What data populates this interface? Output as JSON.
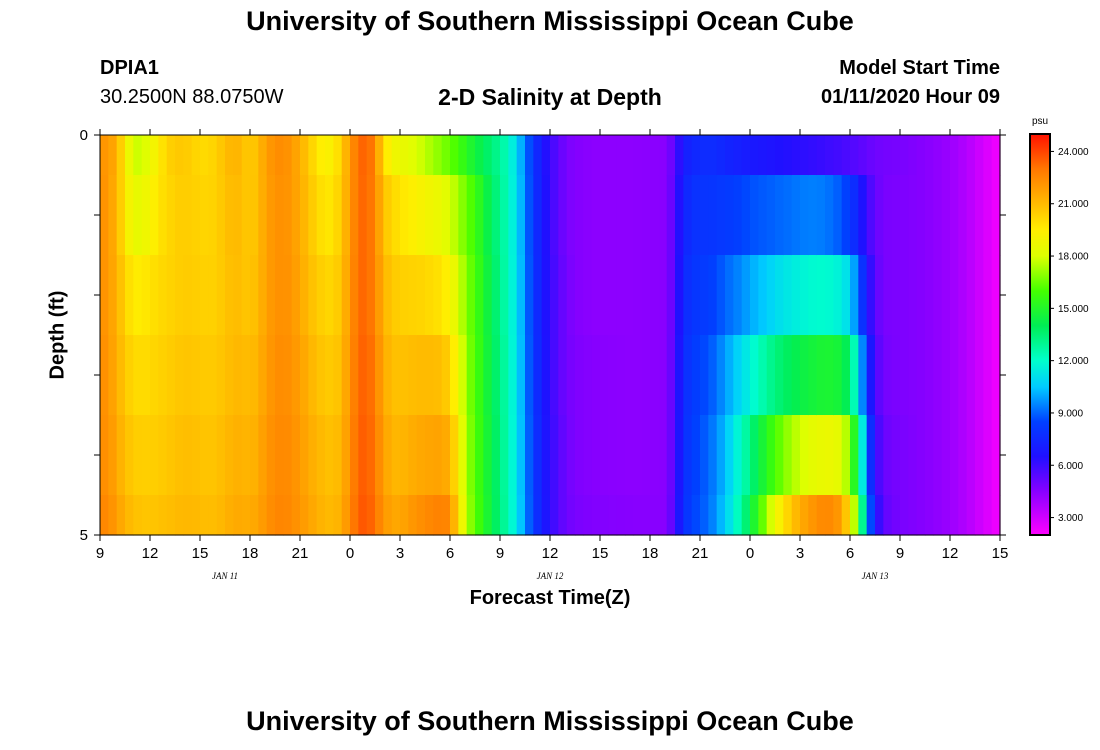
{
  "header": {
    "title": "University of Southern Mississippi Ocean Cube",
    "station_id": "DPIA1",
    "coordinates": "30.2500N 88.0750W",
    "subtitle": "2-D Salinity at Depth",
    "model_start_label": "Model Start Time",
    "model_start_value": "01/11/2020 Hour 09"
  },
  "footer": {
    "title": "University of Southern Mississippi Ocean Cube"
  },
  "chart_data": {
    "type": "heatmap",
    "title": "2-D Salinity at Depth",
    "xlabel": "Forecast Time(Z)",
    "ylabel": "Depth (ft)",
    "x_range_hours": [
      0,
      54
    ],
    "x_ticks": [
      {
        "hour": 0,
        "label": "9"
      },
      {
        "hour": 3,
        "label": "12"
      },
      {
        "hour": 6,
        "label": "15"
      },
      {
        "hour": 9,
        "label": "18"
      },
      {
        "hour": 12,
        "label": "21"
      },
      {
        "hour": 15,
        "label": "0"
      },
      {
        "hour": 18,
        "label": "3"
      },
      {
        "hour": 21,
        "label": "6"
      },
      {
        "hour": 24,
        "label": "9"
      },
      {
        "hour": 27,
        "label": "12"
      },
      {
        "hour": 30,
        "label": "15"
      },
      {
        "hour": 33,
        "label": "18"
      },
      {
        "hour": 36,
        "label": "21"
      },
      {
        "hour": 39,
        "label": "0"
      },
      {
        "hour": 42,
        "label": "3"
      },
      {
        "hour": 45,
        "label": "6"
      },
      {
        "hour": 48,
        "label": "9"
      },
      {
        "hour": 51,
        "label": "12"
      },
      {
        "hour": 54,
        "label": "15"
      }
    ],
    "date_labels": [
      {
        "hour": 7.5,
        "label": "JAN 11"
      },
      {
        "hour": 27,
        "label": "JAN 12"
      },
      {
        "hour": 46.5,
        "label": "JAN 13"
      }
    ],
    "y_range": [
      0,
      5
    ],
    "y_ticks": [
      {
        "value": 0,
        "label": "0"
      },
      {
        "value": 1,
        "label": ""
      },
      {
        "value": 2,
        "label": ""
      },
      {
        "value": 3,
        "label": ""
      },
      {
        "value": 4,
        "label": ""
      },
      {
        "value": 5,
        "label": "5"
      }
    ],
    "depth_levels": [
      "0-0.5",
      "0.5-1.5",
      "1.5-2.5",
      "2.5-3.5",
      "3.5-4.5",
      "4.5-5"
    ],
    "time_step_hours": 0.5,
    "value_unit": "psu",
    "value_range": [
      2.0,
      25.0
    ],
    "colorbar": {
      "unit": "psu",
      "ticks": [
        24.0,
        21.0,
        18.0,
        15.0,
        12.0,
        9.0,
        6.0,
        3.0
      ],
      "tick_labels": [
        "24.000",
        "21.000",
        "18.000",
        "15.000",
        "12.000",
        "9.000",
        "6.000",
        "3.000"
      ],
      "stops": [
        {
          "v": 2.0,
          "color": "#ff00ff"
        },
        {
          "v": 4.5,
          "color": "#8800ff"
        },
        {
          "v": 6.5,
          "color": "#2010ff"
        },
        {
          "v": 8.5,
          "color": "#0040ff"
        },
        {
          "v": 10.5,
          "color": "#00ccff"
        },
        {
          "v": 12.0,
          "color": "#00ffcc"
        },
        {
          "v": 14.0,
          "color": "#00ee55"
        },
        {
          "v": 16.0,
          "color": "#44ff00"
        },
        {
          "v": 18.0,
          "color": "#ddff00"
        },
        {
          "v": 19.5,
          "color": "#ffee00"
        },
        {
          "v": 21.0,
          "color": "#ffbb00"
        },
        {
          "v": 23.0,
          "color": "#ff7700"
        },
        {
          "v": 25.0,
          "color": "#ff1100"
        }
      ]
    },
    "salinity_profile": [
      {
        "hour": 0.0,
        "levels": [
          22.2,
          22.3,
          22.3,
          22.4,
          22.4,
          22.6
        ]
      },
      {
        "hour": 0.5,
        "levels": [
          22.0,
          22.0,
          22.0,
          22.1,
          22.2,
          22.4
        ]
      },
      {
        "hour": 1.0,
        "levels": [
          21.4,
          21.2,
          21.3,
          21.4,
          21.6,
          21.9
        ]
      },
      {
        "hour": 1.5,
        "levels": [
          19.5,
          19.7,
          20.3,
          20.6,
          20.9,
          21.2
        ]
      },
      {
        "hour": 2.0,
        "levels": [
          17.8,
          18.4,
          19.5,
          20.1,
          20.5,
          20.9
        ]
      },
      {
        "hour": 2.5,
        "levels": [
          17.8,
          18.6,
          19.6,
          20.0,
          20.4,
          20.7
        ]
      },
      {
        "hour": 3.0,
        "levels": [
          18.5,
          19.0,
          19.8,
          20.1,
          20.4,
          20.7
        ]
      },
      {
        "hour": 3.5,
        "levels": [
          19.5,
          19.8,
          20.1,
          20.3,
          20.5,
          20.8
        ]
      },
      {
        "hour": 4.0,
        "levels": [
          20.2,
          20.1,
          20.2,
          20.4,
          20.6,
          20.9
        ]
      },
      {
        "hour": 4.5,
        "levels": [
          20.6,
          20.4,
          20.4,
          20.6,
          20.8,
          21.0
        ]
      },
      {
        "hour": 5.0,
        "levels": [
          20.6,
          20.5,
          20.5,
          20.7,
          20.9,
          21.1
        ]
      },
      {
        "hour": 5.5,
        "levels": [
          20.4,
          20.4,
          20.5,
          20.7,
          20.9,
          21.1
        ]
      },
      {
        "hour": 6.0,
        "levels": [
          20.1,
          20.3,
          20.4,
          20.6,
          20.8,
          21.0
        ]
      },
      {
        "hour": 6.5,
        "levels": [
          20.1,
          20.2,
          20.3,
          20.5,
          20.7,
          20.9
        ]
      },
      {
        "hour": 7.0,
        "levels": [
          20.4,
          20.4,
          20.4,
          20.6,
          20.8,
          21.0
        ]
      },
      {
        "hour": 7.5,
        "levels": [
          20.9,
          20.8,
          20.7,
          20.8,
          21.0,
          21.2
        ]
      },
      {
        "hour": 8.0,
        "levels": [
          21.3,
          21.1,
          21.0,
          21.1,
          21.3,
          21.5
        ]
      },
      {
        "hour": 8.5,
        "levels": [
          21.0,
          20.9,
          20.9,
          21.1,
          21.3,
          21.5
        ]
      },
      {
        "hour": 9.0,
        "levels": [
          20.4,
          20.5,
          20.6,
          20.9,
          21.1,
          21.4
        ]
      },
      {
        "hour": 9.5,
        "levels": [
          21.0,
          21.0,
          21.1,
          21.3,
          21.5,
          21.7
        ]
      },
      {
        "hour": 10.0,
        "levels": [
          21.9,
          21.8,
          21.8,
          21.9,
          22.1,
          22.2
        ]
      },
      {
        "hour": 10.5,
        "levels": [
          22.3,
          22.2,
          22.2,
          22.3,
          22.4,
          22.5
        ]
      },
      {
        "hour": 11.0,
        "levels": [
          22.4,
          22.3,
          22.3,
          22.4,
          22.5,
          22.6
        ]
      },
      {
        "hour": 11.5,
        "levels": [
          22.0,
          22.0,
          22.1,
          22.2,
          22.3,
          22.4
        ]
      },
      {
        "hour": 12.0,
        "levels": [
          21.4,
          21.5,
          21.6,
          21.8,
          22.0,
          22.1
        ]
      },
      {
        "hour": 12.5,
        "levels": [
          20.6,
          20.8,
          21.0,
          21.3,
          21.5,
          21.7
        ]
      },
      {
        "hour": 13.0,
        "levels": [
          19.8,
          20.2,
          20.6,
          20.9,
          21.2,
          21.4
        ]
      },
      {
        "hour": 13.5,
        "levels": [
          19.2,
          19.7,
          20.2,
          20.6,
          20.9,
          21.1
        ]
      },
      {
        "hour": 14.0,
        "levels": [
          19.4,
          19.8,
          20.2,
          20.5,
          20.8,
          21.0
        ]
      },
      {
        "hour": 14.5,
        "levels": [
          20.4,
          20.6,
          20.8,
          21.0,
          21.2,
          21.4
        ]
      },
      {
        "hour": 15.0,
        "levels": [
          22.0,
          22.0,
          22.1,
          22.2,
          22.3,
          22.5
        ]
      },
      {
        "hour": 15.5,
        "levels": [
          23.2,
          23.2,
          23.2,
          23.3,
          23.4,
          23.5
        ]
      },
      {
        "hour": 16.0,
        "levels": [
          23.5,
          23.4,
          23.4,
          23.5,
          23.6,
          23.7
        ]
      },
      {
        "hour": 16.5,
        "levels": [
          22.6,
          22.6,
          22.6,
          22.8,
          22.9,
          23.1
        ]
      },
      {
        "hour": 17.0,
        "levels": [
          20.0,
          20.8,
          21.2,
          21.5,
          21.8,
          22.1
        ]
      },
      {
        "hour": 17.5,
        "levels": [
          19.0,
          20.2,
          20.6,
          20.9,
          21.2,
          21.6
        ]
      },
      {
        "hour": 18.0,
        "levels": [
          18.6,
          19.8,
          20.4,
          20.8,
          21.1,
          21.6
        ]
      },
      {
        "hour": 18.5,
        "levels": [
          18.4,
          19.5,
          20.3,
          20.9,
          21.3,
          21.9
        ]
      },
      {
        "hour": 19.0,
        "levels": [
          18.0,
          19.3,
          20.3,
          21.0,
          21.5,
          22.2
        ]
      },
      {
        "hour": 19.5,
        "levels": [
          17.6,
          19.0,
          20.2,
          21.0,
          21.6,
          22.4
        ]
      },
      {
        "hour": 20.0,
        "levels": [
          17.2,
          18.8,
          20.0,
          21.0,
          21.7,
          22.6
        ]
      },
      {
        "hour": 20.5,
        "levels": [
          16.8,
          18.5,
          19.8,
          20.9,
          21.7,
          22.7
        ]
      },
      {
        "hour": 21.0,
        "levels": [
          16.4,
          18.0,
          19.2,
          20.3,
          21.3,
          22.5
        ]
      },
      {
        "hour": 21.5,
        "levels": [
          15.9,
          17.2,
          18.0,
          18.7,
          19.4,
          20.0
        ]
      },
      {
        "hour": 22.0,
        "levels": [
          15.2,
          16.5,
          16.8,
          17.0,
          17.2,
          17.4
        ]
      },
      {
        "hour": 22.5,
        "levels": [
          14.6,
          15.8,
          16.0,
          16.1,
          16.2,
          16.3
        ]
      },
      {
        "hour": 23.0,
        "levels": [
          14.0,
          14.8,
          15.0,
          15.1,
          15.2,
          15.3
        ]
      },
      {
        "hour": 23.5,
        "levels": [
          13.4,
          13.8,
          14.0,
          14.1,
          14.2,
          14.3
        ]
      },
      {
        "hour": 24.0,
        "levels": [
          12.9,
          13.0,
          13.1,
          13.2,
          13.3,
          13.3
        ]
      },
      {
        "hour": 24.5,
        "levels": [
          12.2,
          12.3,
          12.3,
          12.4,
          12.4,
          12.5
        ]
      },
      {
        "hour": 25.0,
        "levels": [
          10.8,
          10.9,
          11.0,
          11.0,
          11.1,
          11.1
        ]
      },
      {
        "hour": 25.5,
        "levels": [
          9.4,
          9.5,
          9.5,
          9.6,
          9.6,
          9.7
        ]
      },
      {
        "hour": 26.0,
        "levels": [
          8.0,
          8.0,
          8.1,
          8.1,
          8.2,
          8.2
        ]
      },
      {
        "hour": 26.5,
        "levels": [
          6.9,
          7.0,
          7.0,
          7.1,
          7.1,
          7.2
        ]
      },
      {
        "hour": 27.0,
        "levels": [
          6.0,
          6.0,
          6.1,
          6.1,
          6.2,
          6.2
        ]
      },
      {
        "hour": 27.5,
        "levels": [
          5.3,
          5.3,
          5.4,
          5.4,
          5.5,
          5.5
        ]
      },
      {
        "hour": 28.0,
        "levels": [
          4.8,
          4.8,
          4.9,
          4.9,
          5.0,
          5.0
        ]
      },
      {
        "hour": 28.5,
        "levels": [
          4.6,
          4.6,
          4.6,
          4.7,
          4.7,
          4.8
        ]
      },
      {
        "hour": 29.0,
        "levels": [
          4.5,
          4.5,
          4.5,
          4.6,
          4.6,
          4.7
        ]
      },
      {
        "hour": 30.0,
        "levels": [
          4.4,
          4.4,
          4.4,
          4.5,
          4.5,
          4.6
        ]
      },
      {
        "hour": 32.0,
        "levels": [
          4.4,
          4.4,
          4.4,
          4.4,
          4.4,
          4.5
        ]
      },
      {
        "hour": 34.0,
        "levels": [
          4.5,
          4.5,
          4.5,
          4.5,
          4.5,
          4.5
        ]
      },
      {
        "hour": 34.5,
        "levels": [
          5.5,
          5.6,
          5.6,
          5.7,
          5.7,
          5.8
        ]
      },
      {
        "hour": 35.0,
        "levels": [
          7.0,
          7.3,
          7.5,
          7.6,
          7.7,
          7.8
        ]
      },
      {
        "hour": 35.5,
        "levels": [
          7.4,
          7.8,
          8.0,
          8.2,
          8.3,
          8.4
        ]
      },
      {
        "hour": 36.0,
        "levels": [
          7.6,
          8.0,
          8.2,
          8.5,
          8.7,
          8.8
        ]
      },
      {
        "hour": 36.5,
        "levels": [
          7.7,
          8.0,
          8.3,
          8.7,
          9.0,
          9.1
        ]
      },
      {
        "hour": 37.0,
        "levels": [
          7.6,
          8.1,
          8.6,
          9.2,
          9.6,
          9.8
        ]
      },
      {
        "hour": 37.5,
        "levels": [
          7.4,
          8.2,
          9.0,
          9.8,
          10.3,
          10.6
        ]
      },
      {
        "hour": 38.0,
        "levels": [
          7.2,
          8.3,
          9.3,
          10.4,
          11.2,
          11.6
        ]
      },
      {
        "hour": 38.5,
        "levels": [
          7.1,
          8.5,
          9.6,
          11.0,
          12.2,
          12.8
        ]
      },
      {
        "hour": 39.0,
        "levels": [
          6.9,
          8.7,
          10.0,
          11.6,
          13.2,
          14.2
        ]
      },
      {
        "hour": 39.5,
        "levels": [
          6.8,
          8.8,
          10.3,
          12.2,
          14.2,
          15.6
        ]
      },
      {
        "hour": 40.0,
        "levels": [
          6.7,
          8.9,
          10.6,
          12.8,
          15.2,
          17.2
        ]
      },
      {
        "hour": 40.5,
        "levels": [
          6.6,
          9.0,
          10.9,
          13.3,
          16.0,
          18.6
        ]
      },
      {
        "hour": 41.0,
        "levels": [
          6.5,
          9.1,
          11.2,
          13.7,
          16.7,
          19.8
        ]
      },
      {
        "hour": 41.5,
        "levels": [
          6.4,
          9.2,
          11.4,
          14.0,
          17.3,
          20.7
        ]
      },
      {
        "hour": 42.0,
        "levels": [
          6.3,
          9.3,
          11.6,
          14.3,
          17.8,
          21.4
        ]
      },
      {
        "hour": 42.5,
        "levels": [
          6.2,
          9.4,
          11.8,
          14.5,
          18.2,
          21.9
        ]
      },
      {
        "hour": 43.0,
        "levels": [
          6.1,
          9.4,
          11.9,
          14.7,
          18.5,
          22.3
        ]
      },
      {
        "hour": 43.5,
        "levels": [
          6.0,
          9.3,
          11.9,
          14.8,
          18.6,
          22.5
        ]
      },
      {
        "hour": 44.0,
        "levels": [
          5.9,
          9.1,
          11.8,
          14.8,
          18.6,
          22.4
        ]
      },
      {
        "hour": 44.5,
        "levels": [
          5.8,
          8.8,
          11.5,
          14.5,
          18.2,
          21.8
        ]
      },
      {
        "hour": 45.0,
        "levels": [
          5.6,
          8.2,
          10.8,
          13.6,
          16.8,
          19.6
        ]
      },
      {
        "hour": 45.5,
        "levels": [
          5.4,
          7.2,
          9.0,
          11.2,
          13.6,
          15.6
        ]
      },
      {
        "hour": 46.0,
        "levels": [
          5.2,
          6.0,
          6.8,
          7.8,
          9.2,
          10.4
        ]
      },
      {
        "hour": 46.5,
        "levels": [
          5.0,
          5.2,
          5.4,
          5.7,
          6.2,
          6.8
        ]
      },
      {
        "hour": 47.0,
        "levels": [
          4.9,
          4.8,
          4.8,
          4.9,
          5.1,
          5.3
        ]
      },
      {
        "hour": 48.0,
        "levels": [
          4.8,
          4.7,
          4.7,
          4.7,
          4.8,
          4.8
        ]
      },
      {
        "hour": 49.0,
        "levels": [
          4.6,
          4.6,
          4.6,
          4.6,
          4.6,
          4.6
        ]
      },
      {
        "hour": 50.0,
        "levels": [
          4.4,
          4.4,
          4.4,
          4.4,
          4.4,
          4.4
        ]
      },
      {
        "hour": 51.0,
        "levels": [
          4.1,
          4.1,
          4.1,
          4.1,
          4.1,
          4.1
        ]
      },
      {
        "hour": 52.0,
        "levels": [
          3.6,
          3.6,
          3.6,
          3.6,
          3.6,
          3.6
        ]
      },
      {
        "hour": 53.0,
        "levels": [
          2.9,
          2.9,
          2.9,
          2.9,
          2.9,
          2.9
        ]
      },
      {
        "hour": 54.0,
        "levels": [
          2.2,
          2.2,
          2.2,
          2.2,
          2.2,
          2.2
        ]
      }
    ]
  }
}
